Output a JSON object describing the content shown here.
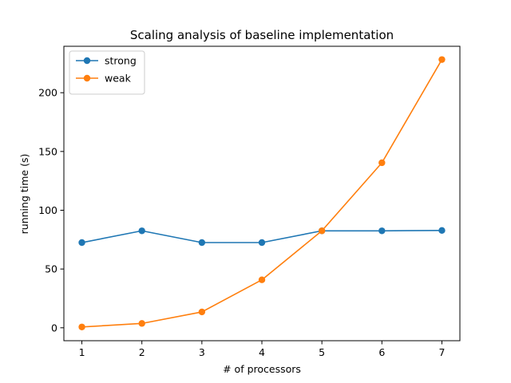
{
  "chart_data": {
    "type": "line",
    "title": "Scaling analysis of baseline implementation",
    "xlabel": "# of processors",
    "ylabel": "running time (s)",
    "x": [
      1,
      2,
      3,
      4,
      5,
      6,
      7
    ],
    "xticks": [
      1,
      2,
      3,
      4,
      5,
      6,
      7
    ],
    "yticks": [
      0,
      50,
      100,
      150,
      200
    ],
    "xlim": [
      0.7,
      7.3
    ],
    "ylim": [
      -11,
      239.5
    ],
    "grid": false,
    "legend_position": "top-left",
    "series": [
      {
        "name": "strong",
        "color": "#1f77b4",
        "marker": "circle",
        "values": [
          72.5,
          82.5,
          72.5,
          72.5,
          82.5,
          82.5,
          82.8
        ]
      },
      {
        "name": "weak",
        "color": "#ff7f0e",
        "marker": "circle",
        "values": [
          0.7,
          3.7,
          13.5,
          40.8,
          82.5,
          140.4,
          228.2
        ]
      }
    ]
  }
}
